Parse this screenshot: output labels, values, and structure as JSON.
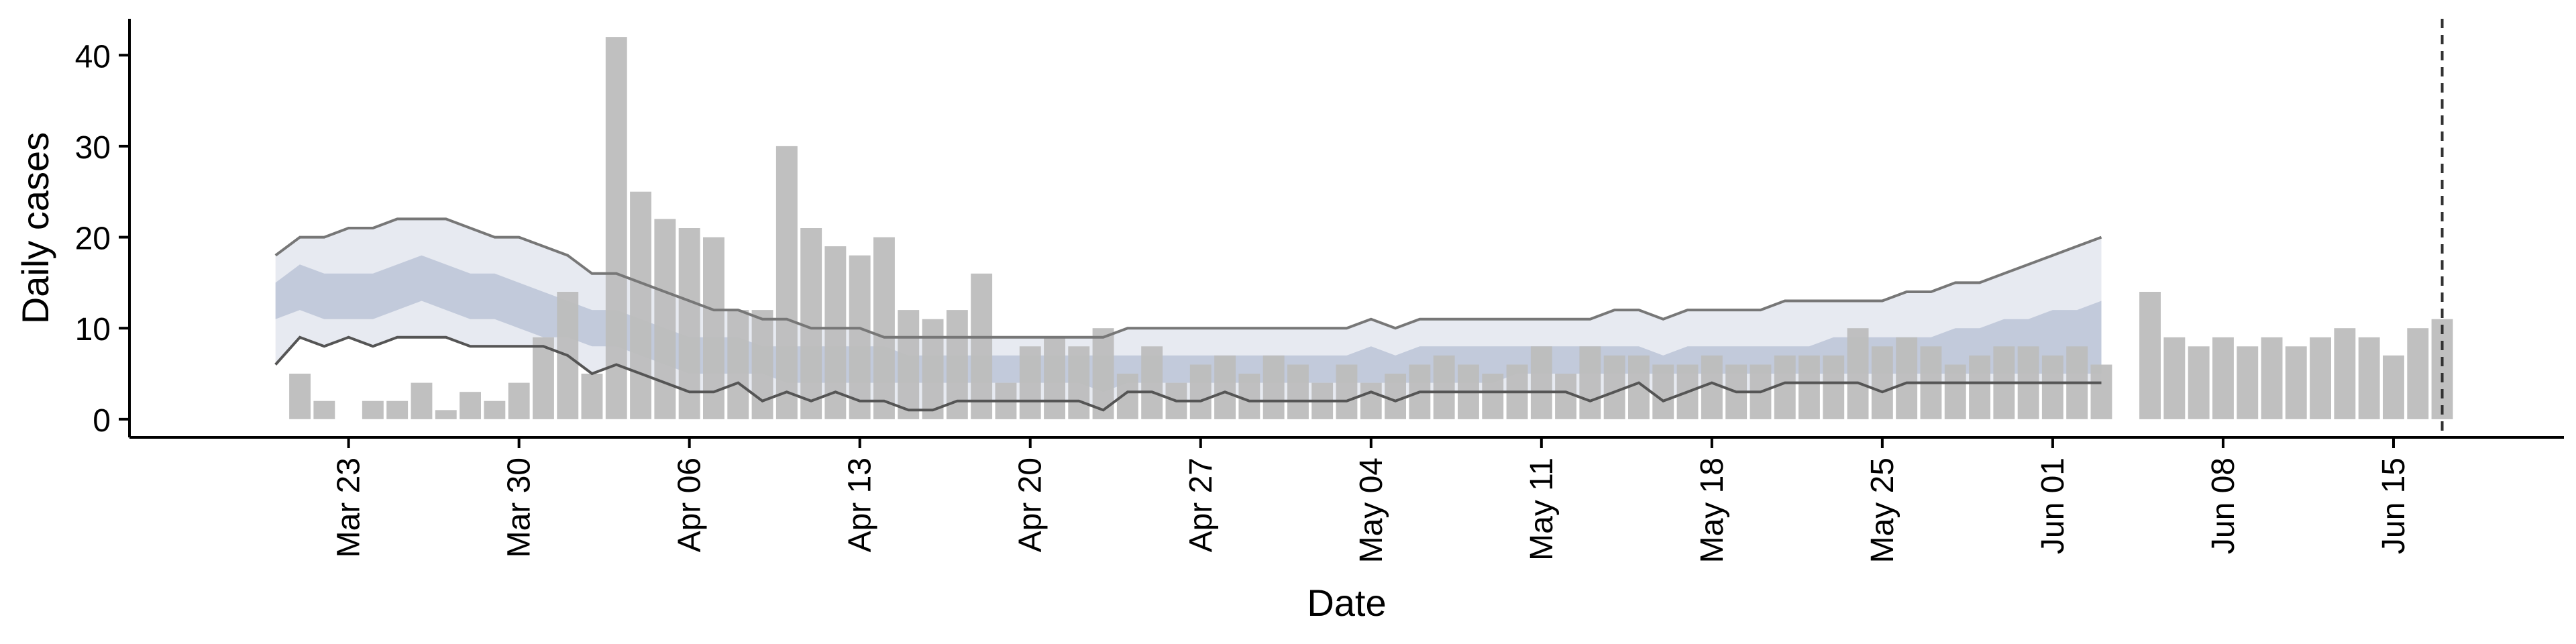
{
  "chart_data": {
    "type": "bar",
    "title": "",
    "xlabel": "Date",
    "ylabel": "Daily cases",
    "ylim": [
      -2,
      44
    ],
    "xlim": [
      "2020-03-14",
      "2020-06-22"
    ],
    "grid": false,
    "legend": "none",
    "y_ticks": [
      0,
      10,
      20,
      30,
      40
    ],
    "x_ticks": [
      {
        "date": "2020-03-23",
        "label": "Mar 23"
      },
      {
        "date": "2020-03-30",
        "label": "Mar 30"
      },
      {
        "date": "2020-04-06",
        "label": "Apr 06"
      },
      {
        "date": "2020-04-13",
        "label": "Apr 13"
      },
      {
        "date": "2020-04-20",
        "label": "Apr 20"
      },
      {
        "date": "2020-04-27",
        "label": "Apr 27"
      },
      {
        "date": "2020-05-04",
        "label": "May 04"
      },
      {
        "date": "2020-05-11",
        "label": "May 11"
      },
      {
        "date": "2020-05-18",
        "label": "May 18"
      },
      {
        "date": "2020-05-25",
        "label": "May 25"
      },
      {
        "date": "2020-06-01",
        "label": "Jun 01"
      },
      {
        "date": "2020-06-08",
        "label": "Jun 08"
      },
      {
        "date": "2020-06-15",
        "label": "Jun 15"
      }
    ],
    "bars": {
      "name": "Daily cases",
      "color": "#bdbdbd",
      "start_date": "2020-03-21",
      "values": [
        5,
        2,
        0,
        2,
        2,
        4,
        1,
        3,
        2,
        4,
        9,
        14,
        5,
        42,
        25,
        22,
        21,
        20,
        12,
        12,
        30,
        21,
        19,
        18,
        20,
        12,
        11,
        12,
        16,
        4,
        8,
        9,
        8,
        10,
        5,
        8,
        4,
        6,
        7,
        5,
        7,
        6,
        4,
        6,
        4,
        5,
        6,
        7,
        6,
        5,
        6,
        8,
        5,
        8,
        7,
        7,
        6,
        6,
        7,
        6,
        6,
        7,
        7,
        7,
        10,
        8,
        9,
        8,
        6,
        7,
        8,
        8,
        7,
        8,
        6,
        null,
        14,
        9,
        8,
        9,
        8,
        9,
        8,
        9,
        10,
        9,
        7,
        10,
        11
      ]
    },
    "estimate": {
      "start_date": "2020-03-20",
      "outer_color": "#e3e6ef",
      "inner_color": "#b9c2d6",
      "outer_lower": [
        6,
        9,
        8,
        9,
        8,
        9,
        9,
        9,
        8,
        8,
        8,
        8,
        7,
        5,
        6,
        5,
        4,
        3,
        3,
        4,
        2,
        3,
        2,
        3,
        2,
        2,
        1,
        1,
        2,
        2,
        2,
        2,
        2,
        2,
        1,
        3,
        3,
        2,
        2,
        3,
        2,
        2,
        2,
        2,
        2,
        3,
        2,
        3,
        3,
        3,
        3,
        3,
        3,
        3,
        2,
        3,
        4,
        2,
        3,
        4,
        3,
        3,
        4,
        4,
        4,
        4,
        3,
        4,
        4,
        4,
        4,
        4,
        4,
        4,
        4,
        4
      ],
      "inner_lower": [
        11,
        12,
        11,
        11,
        11,
        12,
        13,
        12,
        11,
        11,
        10,
        9,
        9,
        8,
        8,
        7,
        6,
        5,
        5,
        5,
        5,
        4,
        4,
        4,
        4,
        4,
        4,
        4,
        4,
        4,
        4,
        4,
        4,
        4,
        3,
        4,
        4,
        4,
        4,
        4,
        4,
        4,
        4,
        4,
        4,
        4,
        4,
        4,
        4,
        4,
        4,
        5,
        5,
        5,
        5,
        5,
        5,
        5,
        5,
        5,
        5,
        5,
        5,
        5,
        5,
        5,
        5,
        5,
        5,
        5,
        5,
        5,
        5,
        5,
        5,
        5
      ],
      "median": [
        13,
        15,
        14,
        14,
        14,
        15,
        16,
        15,
        14,
        13,
        12,
        11,
        11,
        10,
        10,
        9,
        8,
        7,
        7,
        7,
        7,
        6,
        6,
        6,
        6,
        6,
        5,
        5,
        5,
        5,
        5,
        5,
        5,
        5,
        5,
        5,
        5,
        5,
        5,
        5,
        5,
        5,
        5,
        5,
        5,
        5,
        5,
        5,
        5,
        5,
        5,
        6,
        6,
        6,
        6,
        6,
        6,
        6,
        6,
        6,
        6,
        6,
        6,
        6,
        6,
        6,
        7,
        7,
        7,
        7,
        8,
        8,
        8,
        8,
        9,
        9
      ],
      "inner_upper": [
        15,
        17,
        16,
        16,
        16,
        17,
        18,
        17,
        16,
        16,
        15,
        14,
        13,
        12,
        12,
        11,
        10,
        9,
        9,
        9,
        8,
        8,
        8,
        8,
        8,
        8,
        7,
        7,
        7,
        7,
        7,
        7,
        7,
        7,
        7,
        7,
        7,
        7,
        7,
        7,
        7,
        7,
        7,
        7,
        7,
        8,
        7,
        8,
        8,
        8,
        8,
        8,
        8,
        8,
        8,
        8,
        8,
        7,
        8,
        8,
        8,
        8,
        8,
        8,
        9,
        9,
        9,
        9,
        9,
        10,
        10,
        11,
        11,
        12,
        12,
        13
      ],
      "outer_upper": [
        18,
        20,
        20,
        21,
        21,
        22,
        22,
        22,
        21,
        20,
        20,
        19,
        18,
        16,
        16,
        15,
        14,
        13,
        12,
        12,
        11,
        11,
        10,
        10,
        10,
        9,
        9,
        9,
        9,
        9,
        9,
        9,
        9,
        9,
        9,
        10,
        10,
        10,
        10,
        10,
        10,
        10,
        10,
        10,
        10,
        11,
        10,
        11,
        11,
        11,
        11,
        11,
        11,
        11,
        11,
        12,
        12,
        11,
        12,
        12,
        12,
        12,
        13,
        13,
        13,
        13,
        13,
        14,
        14,
        15,
        15,
        16,
        17,
        18,
        19,
        20
      ],
      "line_color": "#777777"
    },
    "vline": {
      "date": "2020-06-17",
      "style": "dashed",
      "color": "#333333"
    }
  }
}
